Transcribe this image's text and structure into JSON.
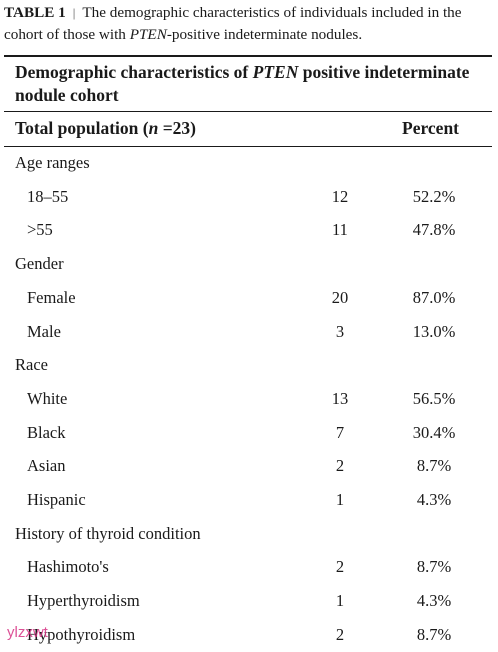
{
  "caption": {
    "label": "TABLE 1",
    "separator": "|",
    "text_before": "The demographic characteristics of individuals included in the cohort of those with ",
    "gene": "PTEN",
    "text_after": "-positive indeterminate nodules."
  },
  "table": {
    "heading_before": "Demographic characteristics of ",
    "heading_gene": "PTEN",
    "heading_after": " positive indeterminate nodule cohort",
    "column_left_before": "Total population (",
    "column_left_var": "n",
    "column_left_after": " =23)",
    "column_right": "Percent",
    "rows": [
      {
        "name": "Age ranges",
        "n": "",
        "pct": "",
        "type": "group"
      },
      {
        "name": "18–55",
        "n": "12",
        "pct": "52.2%",
        "type": "sub"
      },
      {
        "name": ">55",
        "n": "11",
        "pct": "47.8%",
        "type": "sub"
      },
      {
        "name": "Gender",
        "n": "",
        "pct": "",
        "type": "group"
      },
      {
        "name": "Female",
        "n": "20",
        "pct": "87.0%",
        "type": "sub"
      },
      {
        "name": "Male",
        "n": "3",
        "pct": "13.0%",
        "type": "sub"
      },
      {
        "name": "Race",
        "n": "",
        "pct": "",
        "type": "group"
      },
      {
        "name": "White",
        "n": "13",
        "pct": "56.5%",
        "type": "sub"
      },
      {
        "name": "Black",
        "n": "7",
        "pct": "30.4%",
        "type": "sub"
      },
      {
        "name": "Asian",
        "n": "2",
        "pct": "8.7%",
        "type": "sub"
      },
      {
        "name": "Hispanic",
        "n": "1",
        "pct": "4.3%",
        "type": "sub"
      },
      {
        "name": "History of thyroid condition",
        "n": "",
        "pct": "",
        "type": "group"
      },
      {
        "name": "Hashimoto's",
        "n": "2",
        "pct": "8.7%",
        "type": "sub"
      },
      {
        "name": "Hyperthyroidism",
        "n": "1",
        "pct": "4.3%",
        "type": "sub"
      },
      {
        "name": "Hypothyroidism",
        "n": "2",
        "pct": "8.7%",
        "type": "sub"
      }
    ]
  },
  "watermark": "ylzxwt"
}
